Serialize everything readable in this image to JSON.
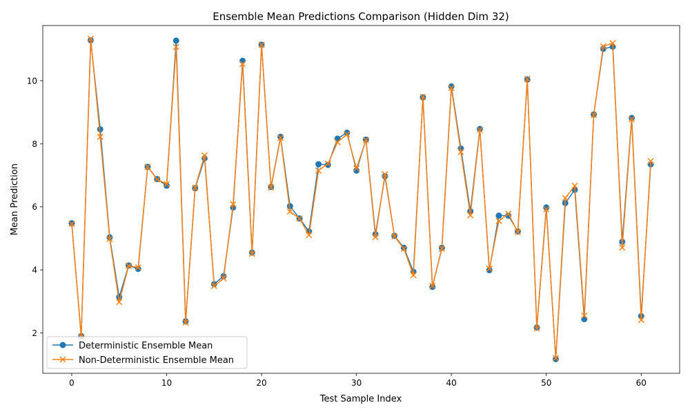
{
  "chart_data": {
    "type": "line",
    "title": "Ensemble Mean Predictions Comparison (Hidden Dim 32)",
    "xlabel": "Test Sample Index",
    "ylabel": "Mean Prediction",
    "xlim": [
      -3.05,
      64.05
    ],
    "ylim": [
      0.72,
      11.75
    ],
    "xticks": [
      0,
      10,
      20,
      30,
      40,
      50,
      60
    ],
    "yticks": [
      2,
      4,
      6,
      8,
      10
    ],
    "grid": false,
    "legend_position": "lower-left",
    "x": [
      0,
      1,
      2,
      3,
      4,
      5,
      6,
      7,
      8,
      9,
      10,
      11,
      12,
      13,
      14,
      15,
      16,
      17,
      18,
      19,
      20,
      21,
      22,
      23,
      24,
      25,
      26,
      27,
      28,
      29,
      30,
      31,
      32,
      33,
      34,
      35,
      36,
      37,
      38,
      39,
      40,
      41,
      42,
      43,
      44,
      45,
      46,
      47,
      48,
      49,
      50,
      51,
      52,
      53,
      54,
      55,
      56,
      57,
      58,
      59,
      60,
      61
    ],
    "series": [
      {
        "name": "Deterministic Ensemble Mean",
        "color": "#1f77b4",
        "marker": "circle",
        "values": [
          5.48,
          1.9,
          11.28,
          8.46,
          5.03,
          3.14,
          4.14,
          4.03,
          7.27,
          6.88,
          6.67,
          11.27,
          2.37,
          6.59,
          7.54,
          3.55,
          3.8,
          5.98,
          10.63,
          4.55,
          11.14,
          6.63,
          8.22,
          6.02,
          5.63,
          5.22,
          7.35,
          7.33,
          8.16,
          8.35,
          7.15,
          8.13,
          5.13,
          6.97,
          5.08,
          4.7,
          3.94,
          9.47,
          3.46,
          4.7,
          9.82,
          7.85,
          5.86,
          8.47,
          3.99,
          5.72,
          5.72,
          5.22,
          10.04,
          2.17,
          5.98,
          1.17,
          6.12,
          6.54,
          2.44,
          8.93,
          11.01,
          11.08,
          4.89,
          8.82,
          2.53,
          7.35
        ]
      },
      {
        "name": "Non-Deterministic Ensemble Mean",
        "color": "#ff7f0e",
        "marker": "x",
        "values": [
          5.46,
          1.88,
          11.33,
          8.22,
          4.98,
          2.98,
          4.13,
          4.08,
          7.27,
          6.87,
          6.72,
          11.07,
          2.33,
          6.61,
          7.63,
          3.49,
          3.73,
          6.08,
          10.53,
          4.51,
          11.14,
          6.61,
          8.19,
          5.85,
          5.63,
          5.1,
          7.15,
          7.37,
          8.05,
          8.3,
          7.22,
          8.12,
          5.04,
          7.03,
          5.06,
          4.67,
          3.83,
          9.49,
          3.49,
          4.67,
          9.77,
          7.74,
          5.73,
          8.44,
          4.04,
          5.55,
          5.78,
          5.2,
          10.06,
          2.14,
          5.92,
          1.2,
          6.28,
          6.67,
          2.55,
          8.91,
          11.09,
          11.19,
          4.71,
          8.78,
          2.41,
          7.45
        ]
      }
    ]
  }
}
